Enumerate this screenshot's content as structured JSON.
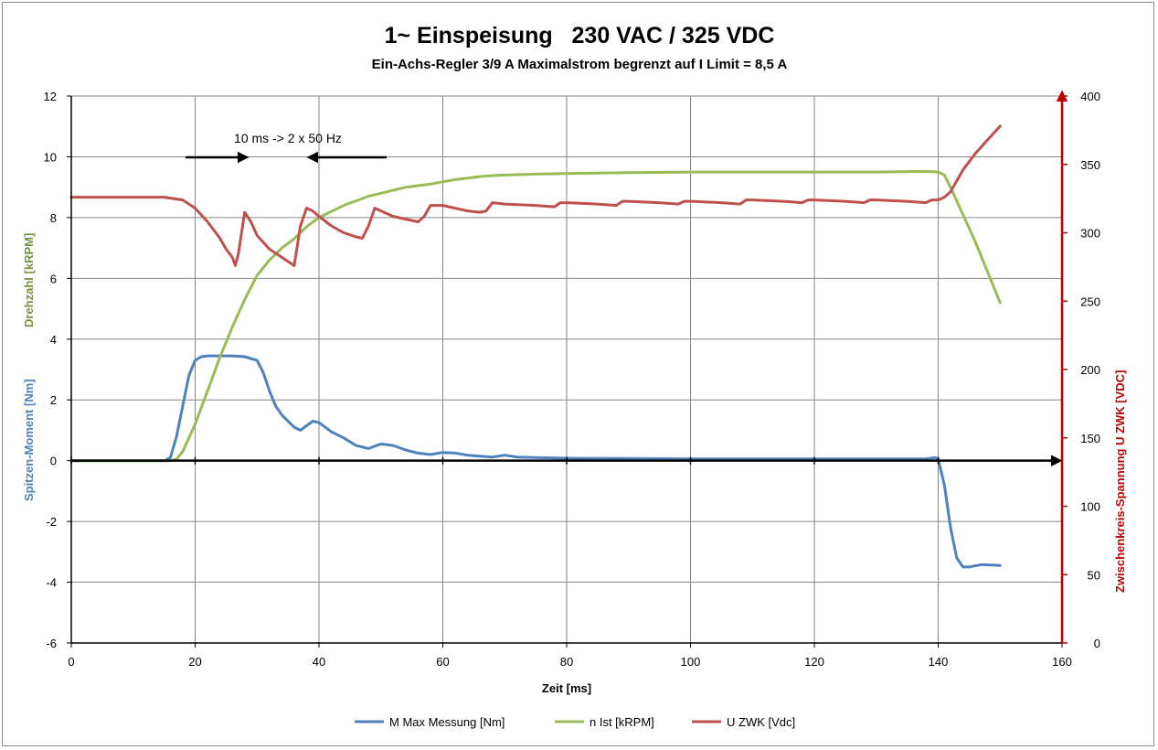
{
  "chart_data": {
    "type": "line",
    "title": "1~ Einspeisung   230 VAC / 325 VDC",
    "subtitle": "Ein-Achs-Regler 3/9 A Maximalstrom begrenzt auf I Limit = 8,5 A",
    "xlabel": "Zeit [ms]",
    "ylabel_left": "Spitzen-Moment [Nm]",
    "ylabel_left_2": "Drehzahl [kRPM]",
    "ylabel_right": "Zwischenkreis-Spannung U ZWK [VDC]",
    "xlim": [
      0,
      160
    ],
    "ylim_left": [
      -6,
      12
    ],
    "ylim_right": [
      0,
      400
    ],
    "x_ticks": [
      "0",
      "20",
      "40",
      "60",
      "80",
      "100",
      "120",
      "140",
      "160"
    ],
    "y_left_ticks": [
      "-6",
      "-4",
      "-2",
      "0",
      "2",
      "4",
      "6",
      "8",
      "10",
      "12"
    ],
    "y_right_ticks": [
      "0",
      "50",
      "100",
      "150",
      "200",
      "250",
      "300",
      "350",
      "400"
    ],
    "grid": true,
    "legend_position": "bottom",
    "annotation": "10 ms -> 2 x 50 Hz",
    "series": [
      {
        "name": "M Max Messung [Nm]",
        "axis": "left",
        "color": "#4f81bd",
        "x": [
          0,
          10,
          15,
          16,
          17,
          18,
          19,
          20,
          21,
          22,
          24,
          26,
          28,
          30,
          31,
          32,
          33,
          34,
          36,
          37,
          38,
          39,
          40,
          42,
          44,
          46,
          48,
          50,
          52,
          54,
          56,
          58,
          60,
          62,
          64,
          66,
          68,
          70,
          72,
          75,
          80,
          90,
          100,
          110,
          120,
          130,
          138,
          139.5,
          140,
          141,
          142,
          143,
          144,
          145,
          147,
          150
        ],
        "y": [
          0,
          0,
          0,
          0.1,
          0.8,
          1.8,
          2.8,
          3.3,
          3.42,
          3.45,
          3.45,
          3.45,
          3.42,
          3.3,
          2.9,
          2.3,
          1.8,
          1.5,
          1.1,
          1.0,
          1.15,
          1.3,
          1.25,
          0.95,
          0.75,
          0.5,
          0.4,
          0.55,
          0.5,
          0.35,
          0.25,
          0.2,
          0.27,
          0.25,
          0.18,
          0.15,
          0.12,
          0.18,
          0.12,
          0.1,
          0.08,
          0.07,
          0.06,
          0.06,
          0.06,
          0.06,
          0.06,
          0.1,
          0.05,
          -0.8,
          -2.2,
          -3.2,
          -3.5,
          -3.5,
          -3.42,
          -3.45
        ]
      },
      {
        "name": "n Ist [kRPM]",
        "axis": "left",
        "color": "#9bbb59",
        "x": [
          0,
          15,
          16,
          17,
          18,
          20,
          22,
          24,
          26,
          28,
          30,
          32,
          34,
          36,
          38,
          40,
          42,
          44,
          46,
          48,
          50,
          52,
          54,
          56,
          58,
          60,
          62,
          64,
          66,
          68,
          70,
          75,
          80,
          90,
          100,
          110,
          120,
          130,
          138,
          140,
          141,
          142,
          144,
          146,
          148,
          150
        ],
        "y": [
          0,
          0,
          0,
          0.05,
          0.3,
          1.2,
          2.3,
          3.4,
          4.4,
          5.3,
          6.1,
          6.6,
          7.0,
          7.3,
          7.7,
          8.0,
          8.2,
          8.4,
          8.55,
          8.7,
          8.8,
          8.9,
          9.0,
          9.05,
          9.1,
          9.18,
          9.25,
          9.3,
          9.35,
          9.38,
          9.4,
          9.43,
          9.45,
          9.48,
          9.5,
          9.5,
          9.5,
          9.5,
          9.52,
          9.5,
          9.4,
          9.0,
          8.1,
          7.2,
          6.2,
          5.2
        ]
      },
      {
        "name": "U ZWK [Vdc]",
        "axis": "right",
        "color": "#c0504d",
        "x": [
          0,
          15,
          18,
          20,
          22,
          24,
          25,
          26,
          26.5,
          27,
          27.5,
          28,
          29,
          30,
          32,
          34,
          36,
          37,
          38,
          39,
          40,
          42,
          44,
          46,
          47,
          48,
          49,
          50,
          52,
          54,
          56,
          57,
          58,
          60,
          62,
          64,
          66,
          67,
          68,
          70,
          75,
          78,
          79,
          80,
          85,
          88,
          89,
          90,
          95,
          98,
          99,
          100,
          105,
          108,
          109,
          110,
          115,
          118,
          119,
          120,
          125,
          128,
          129,
          130,
          135,
          138,
          139,
          140,
          141,
          142,
          143,
          144,
          145,
          146,
          148,
          150
        ],
        "y": [
          326,
          326,
          324,
          318,
          308,
          296,
          288,
          282,
          276,
          285,
          300,
          315,
          308,
          298,
          288,
          282,
          276,
          305,
          318,
          316,
          312,
          305,
          300,
          297,
          296,
          305,
          318,
          316,
          312,
          310,
          308,
          312,
          320,
          320,
          318,
          316,
          315,
          316,
          322,
          321,
          320,
          319,
          322,
          322,
          321,
          320,
          323,
          323,
          322,
          321,
          323,
          323,
          322,
          321,
          324,
          324,
          323,
          322,
          324,
          324,
          323,
          322,
          324,
          324,
          323,
          322,
          324,
          324,
          326,
          330,
          338,
          346,
          352,
          358,
          368,
          378
        ]
      }
    ]
  }
}
